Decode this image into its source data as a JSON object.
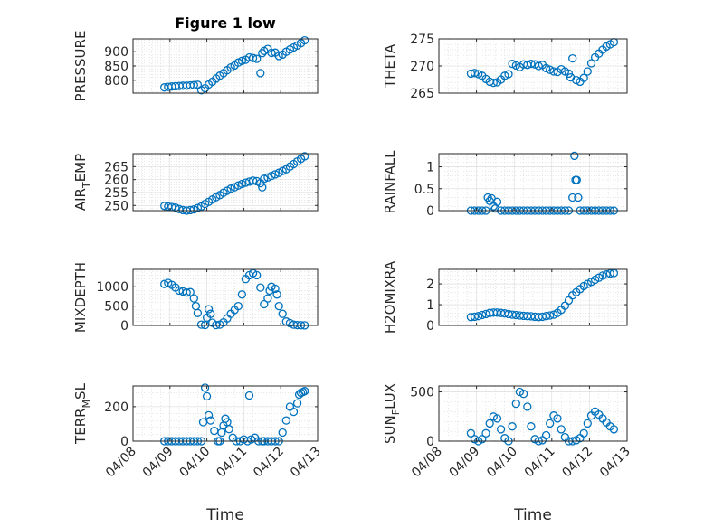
{
  "chart_data": [
    {
      "type": "scatter",
      "title": "Figure 1 low",
      "ylabel": "PRESSURE",
      "ylim": [
        755,
        945
      ],
      "yticks": [
        "900",
        "850",
        "800"
      ],
      "ytick_values": [
        900,
        850,
        800
      ],
      "x": [
        8.85,
        8.95,
        9.05,
        9.15,
        9.25,
        9.35,
        9.45,
        9.55,
        9.65,
        9.75,
        9.85,
        9.95,
        10.05,
        10.15,
        10.25,
        10.35,
        10.45,
        10.55,
        10.65,
        10.75,
        10.85,
        10.95,
        11.05,
        11.15,
        11.25,
        11.35,
        11.45,
        11.5,
        11.55,
        11.65,
        11.75,
        11.85,
        11.95,
        12.05,
        12.15,
        12.25,
        12.35,
        12.45,
        12.55,
        12.65
      ],
      "y": [
        775,
        777,
        778,
        779,
        780,
        781,
        781,
        782,
        783,
        784,
        765,
        772,
        785,
        795,
        806,
        816,
        825,
        835,
        845,
        852,
        862,
        868,
        872,
        880,
        878,
        875,
        825,
        895,
        903,
        910,
        896,
        897,
        885,
        890,
        900,
        908,
        915,
        922,
        930,
        940
      ]
    },
    {
      "type": "scatter",
      "ylabel": "THETA",
      "ylim": [
        265,
        275
      ],
      "yticks": [
        "275",
        "270",
        "265"
      ],
      "ytick_values": [
        275,
        270,
        265
      ],
      "x": [
        8.85,
        8.95,
        9.05,
        9.15,
        9.25,
        9.35,
        9.45,
        9.55,
        9.65,
        9.75,
        9.85,
        9.95,
        10.05,
        10.15,
        10.25,
        10.35,
        10.45,
        10.55,
        10.65,
        10.75,
        10.85,
        10.95,
        11.05,
        11.15,
        11.25,
        11.35,
        11.45,
        11.5,
        11.55,
        11.65,
        11.75,
        11.85,
        11.95,
        12.05,
        12.15,
        12.25,
        12.35,
        12.45,
        12.55,
        12.65
      ],
      "y": [
        268.6,
        268.7,
        268.5,
        268.2,
        267.6,
        267.1,
        266.9,
        267.0,
        267.5,
        268.2,
        268.5,
        270.4,
        270.1,
        269.8,
        270.3,
        270.2,
        270.4,
        270.3,
        270.0,
        270.2,
        269.6,
        269.3,
        269.0,
        268.9,
        269.4,
        269.0,
        268.6,
        267.9,
        271.4,
        267.4,
        267.1,
        267.8,
        269.0,
        270.5,
        271.6,
        272.3,
        273.0,
        273.6,
        274.0,
        274.4
      ]
    },
    {
      "type": "scatter",
      "ylabel": "AIR_TEMP",
      "ylim": [
        248,
        270
      ],
      "yticks": [
        "265",
        "260",
        "255",
        "250"
      ],
      "ytick_values": [
        265,
        260,
        255,
        250
      ],
      "x": [
        8.85,
        8.95,
        9.05,
        9.15,
        9.25,
        9.35,
        9.45,
        9.55,
        9.65,
        9.75,
        9.85,
        9.95,
        10.05,
        10.15,
        10.25,
        10.35,
        10.45,
        10.55,
        10.65,
        10.75,
        10.85,
        10.95,
        11.05,
        11.15,
        11.25,
        11.35,
        11.45,
        11.5,
        11.55,
        11.65,
        11.75,
        11.85,
        11.95,
        12.05,
        12.15,
        12.25,
        12.35,
        12.45,
        12.55,
        12.65
      ],
      "y": [
        249.8,
        249.6,
        249.4,
        249.2,
        248.6,
        248.2,
        248.0,
        248.2,
        248.5,
        249.0,
        249.6,
        250.6,
        251.4,
        252.3,
        253.2,
        254.0,
        254.9,
        255.7,
        256.5,
        257.0,
        257.7,
        258.3,
        258.8,
        259.2,
        259.6,
        259.4,
        258.6,
        257.0,
        260.3,
        260.8,
        261.4,
        262.0,
        262.6,
        263.3,
        264.0,
        265.0,
        266.0,
        267.0,
        268.0,
        269.0
      ]
    },
    {
      "type": "scatter",
      "ylabel": "RAINFALL",
      "ylim": [
        0,
        1.3
      ],
      "yticks": [
        "1",
        "0.5",
        "0"
      ],
      "ytick_values": [
        1,
        0.5,
        0
      ],
      "x": [
        8.85,
        8.95,
        9.05,
        9.15,
        9.25,
        9.3,
        9.35,
        9.4,
        9.45,
        9.5,
        9.55,
        9.65,
        9.75,
        9.85,
        9.95,
        10.05,
        10.15,
        10.25,
        10.35,
        10.45,
        10.55,
        10.65,
        10.75,
        10.85,
        10.95,
        11.05,
        11.15,
        11.25,
        11.35,
        11.45,
        11.55,
        11.6,
        11.63,
        11.66,
        11.7,
        11.75,
        11.85,
        11.95,
        12.05,
        12.15,
        12.25,
        12.35,
        12.45,
        12.55,
        12.65
      ],
      "y": [
        0,
        0,
        0,
        0,
        0,
        0.3,
        0.22,
        0.28,
        0.1,
        0.05,
        0.2,
        0,
        0,
        0,
        0,
        0,
        0,
        0,
        0,
        0,
        0,
        0,
        0,
        0,
        0,
        0,
        0,
        0,
        0,
        0,
        0.3,
        1.25,
        0.7,
        0.7,
        0.3,
        0,
        0,
        0,
        0,
        0,
        0,
        0,
        0,
        0,
        0
      ]
    },
    {
      "type": "scatter",
      "ylabel": "MIXDEPTH",
      "ylim": [
        0,
        1450
      ],
      "yticks": [
        "1000",
        "500",
        "0"
      ],
      "ytick_values": [
        1000,
        500,
        0
      ],
      "x": [
        8.85,
        8.95,
        9.05,
        9.15,
        9.25,
        9.35,
        9.45,
        9.55,
        9.65,
        9.7,
        9.75,
        9.85,
        9.95,
        10.0,
        10.05,
        10.1,
        10.15,
        10.25,
        10.35,
        10.45,
        10.55,
        10.65,
        10.75,
        10.85,
        10.95,
        11.05,
        11.15,
        11.25,
        11.35,
        11.45,
        11.55,
        11.65,
        11.7,
        11.75,
        11.85,
        11.9,
        11.95,
        12.05,
        12.15,
        12.25,
        12.35,
        12.45,
        12.55,
        12.65
      ],
      "y": [
        1070,
        1100,
        1050,
        980,
        900,
        880,
        850,
        860,
        700,
        500,
        320,
        20,
        10,
        200,
        420,
        300,
        70,
        10,
        20,
        80,
        180,
        300,
        400,
        500,
        800,
        1200,
        1300,
        1350,
        1300,
        980,
        550,
        700,
        900,
        1000,
        950,
        800,
        500,
        300,
        100,
        60,
        20,
        10,
        5,
        2
      ]
    },
    {
      "type": "scatter",
      "ylabel": "H2OMIXRA",
      "ylim": [
        0,
        2.7
      ],
      "yticks": [
        "2",
        "1",
        "0"
      ],
      "ytick_values": [
        2,
        1,
        0
      ],
      "x": [
        8.85,
        8.95,
        9.05,
        9.15,
        9.25,
        9.35,
        9.45,
        9.55,
        9.65,
        9.75,
        9.85,
        9.95,
        10.05,
        10.15,
        10.25,
        10.35,
        10.45,
        10.55,
        10.65,
        10.75,
        10.85,
        10.95,
        11.05,
        11.15,
        11.25,
        11.35,
        11.45,
        11.55,
        11.65,
        11.75,
        11.85,
        11.95,
        12.05,
        12.15,
        12.25,
        12.35,
        12.45,
        12.55,
        12.65
      ],
      "y": [
        0.4,
        0.42,
        0.45,
        0.5,
        0.55,
        0.6,
        0.62,
        0.62,
        0.6,
        0.58,
        0.55,
        0.52,
        0.5,
        0.48,
        0.46,
        0.45,
        0.44,
        0.42,
        0.4,
        0.42,
        0.45,
        0.48,
        0.52,
        0.6,
        0.75,
        0.95,
        1.2,
        1.45,
        1.6,
        1.75,
        1.9,
        2.0,
        2.1,
        2.2,
        2.3,
        2.4,
        2.45,
        2.5,
        2.52
      ]
    },
    {
      "type": "scatter",
      "ylabel": "TERR_MSL",
      "ylim": [
        0,
        320
      ],
      "yticks": [
        "200",
        "0"
      ],
      "ytick_values": [
        200,
        0
      ],
      "x": [
        8.85,
        8.95,
        9.05,
        9.15,
        9.25,
        9.35,
        9.45,
        9.55,
        9.65,
        9.75,
        9.85,
        9.9,
        9.95,
        10.0,
        10.05,
        10.1,
        10.2,
        10.3,
        10.35,
        10.4,
        10.45,
        10.5,
        10.55,
        10.6,
        10.7,
        10.8,
        10.9,
        11.0,
        11.1,
        11.15,
        11.2,
        11.3,
        11.4,
        11.5,
        11.55,
        11.65,
        11.75,
        11.85,
        11.95,
        12.05,
        12.15,
        12.25,
        12.35,
        12.45,
        12.5,
        12.55,
        12.6,
        12.65
      ],
      "y": [
        0,
        0,
        0,
        0,
        0,
        0,
        0,
        0,
        0,
        0,
        0,
        110,
        310,
        260,
        150,
        120,
        60,
        0,
        0,
        50,
        90,
        130,
        110,
        70,
        20,
        0,
        0,
        10,
        0,
        265,
        10,
        20,
        0,
        0,
        0,
        0,
        0,
        0,
        0,
        50,
        120,
        200,
        170,
        220,
        270,
        280,
        285,
        290
      ]
    },
    {
      "type": "scatter",
      "ylabel": "SUN_FLUX",
      "ylim": [
        0,
        560
      ],
      "yticks": [
        "500",
        "0"
      ],
      "ytick_values": [
        500,
        0
      ],
      "x": [
        8.85,
        8.95,
        9.05,
        9.15,
        9.25,
        9.35,
        9.45,
        9.55,
        9.65,
        9.75,
        9.85,
        9.95,
        10.05,
        10.15,
        10.25,
        10.35,
        10.45,
        10.55,
        10.65,
        10.75,
        10.85,
        10.95,
        11.05,
        11.15,
        11.25,
        11.35,
        11.45,
        11.55,
        11.65,
        11.75,
        11.85,
        11.95,
        12.05,
        12.15,
        12.25,
        12.35,
        12.45,
        12.55,
        12.65
      ],
      "y": [
        80,
        20,
        0,
        20,
        80,
        180,
        250,
        230,
        120,
        30,
        0,
        150,
        380,
        500,
        480,
        350,
        150,
        20,
        0,
        10,
        60,
        180,
        260,
        230,
        120,
        40,
        0,
        0,
        10,
        30,
        80,
        180,
        260,
        300,
        270,
        230,
        190,
        150,
        120
      ]
    }
  ],
  "shared": {
    "xlim": [
      8,
      13
    ],
    "xticks": [
      "04/08",
      "04/09",
      "04/10",
      "04/11",
      "04/12",
      "04/13"
    ],
    "xtick_values": [
      8,
      9,
      10,
      11,
      12,
      13
    ],
    "xlabel": "Time",
    "grid": true,
    "marker": "circle",
    "color": "#0072BD"
  }
}
